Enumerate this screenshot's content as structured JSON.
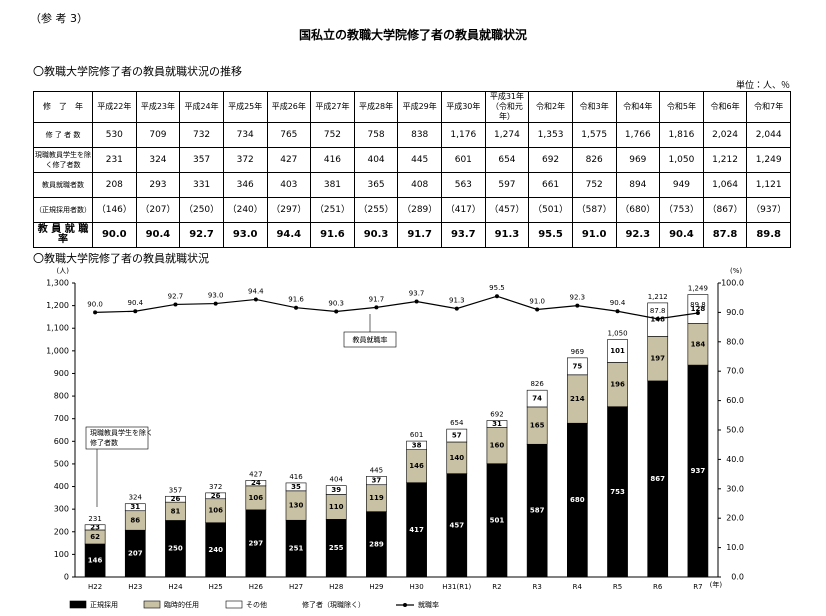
{
  "header": {
    "note": "（参 考 3）",
    "title": "国私立の教職大学院修了者の教員就職状況"
  },
  "table_section": {
    "heading": "〇教職大学院修了者の教員就職状況の推移",
    "unit": "単位：人、％",
    "columns": [
      "修　了　年",
      "平成22年",
      "平成23年",
      "平成24年",
      "平成25年",
      "平成26年",
      "平成27年",
      "平成28年",
      "平成29年",
      "平成30年",
      "平成31年（令和元年）",
      "令和2年",
      "令和3年",
      "令和4年",
      "令和5年",
      "令和6年",
      "令和7年"
    ],
    "rows": [
      [
        "修 了 者 数",
        "530",
        "709",
        "732",
        "734",
        "765",
        "752",
        "758",
        "838",
        "1,176",
        "1,274",
        "1,353",
        "1,575",
        "1,766",
        "1,816",
        "2,024",
        "2,044"
      ],
      [
        "現職教員学生を除く修了者数",
        "231",
        "324",
        "357",
        "372",
        "427",
        "416",
        "404",
        "445",
        "601",
        "654",
        "692",
        "826",
        "969",
        "1,050",
        "1,212",
        "1,249"
      ],
      [
        "教員就職者数",
        "208",
        "293",
        "331",
        "346",
        "403",
        "381",
        "365",
        "408",
        "563",
        "597",
        "661",
        "752",
        "894",
        "949",
        "1,064",
        "1,121"
      ],
      [
        "（正規採用者数）",
        "（146）",
        "（207）",
        "（250）",
        "（240）",
        "（297）",
        "（251）",
        "（255）",
        "（289）",
        "（417）",
        "（457）",
        "（501）",
        "（587）",
        "（680）",
        "（753）",
        "（867）",
        "（937）"
      ],
      [
        "教 員 就 職 率",
        "90.0",
        "90.4",
        "92.7",
        "93.0",
        "94.4",
        "91.6",
        "90.3",
        "91.7",
        "93.7",
        "91.3",
        "95.5",
        "91.0",
        "92.3",
        "90.4",
        "87.8",
        "89.8"
      ]
    ]
  },
  "chart_heading": "〇教職大学院修了者の教員就職状況",
  "chart_data": {
    "type": "bar",
    "stacked": true,
    "categories": [
      "H22",
      "H23",
      "H24",
      "H25",
      "H26",
      "H27",
      "H28",
      "H29",
      "H30",
      "H31(R1)",
      "R2",
      "R3",
      "R4",
      "R5",
      "R6",
      "R7"
    ],
    "x_unit": "(年)",
    "y_unit": "(人)",
    "y2_unit": "(%)",
    "series": [
      {
        "name": "正規採用",
        "type": "bar",
        "color": "#000000",
        "values": [
          146,
          207,
          250,
          240,
          297,
          251,
          255,
          289,
          417,
          457,
          501,
          587,
          680,
          753,
          867,
          937
        ]
      },
      {
        "name": "臨時的任用",
        "type": "bar",
        "color": "#c9c1a3",
        "values": [
          62,
          86,
          81,
          106,
          106,
          130,
          110,
          119,
          146,
          140,
          160,
          165,
          214,
          196,
          197,
          184
        ]
      },
      {
        "name": "その他",
        "type": "bar",
        "color": "#ffffff",
        "values": [
          23,
          31,
          26,
          26,
          24,
          35,
          39,
          37,
          38,
          57,
          31,
          74,
          75,
          101,
          148,
          128
        ]
      },
      {
        "name": "修了者（現職除く）",
        "type": "label",
        "values": [
          231,
          324,
          357,
          372,
          427,
          416,
          404,
          445,
          601,
          654,
          692,
          826,
          969,
          1050,
          1212,
          1249
        ],
        "value_labels": [
          "231",
          "324",
          "357",
          "372",
          "427",
          "416",
          "404",
          "445",
          "601",
          "654",
          "692",
          "826",
          "969",
          "1,050",
          "1,212",
          "1,249"
        ]
      },
      {
        "name": "就職率",
        "type": "line",
        "axis": "y2",
        "color": "#000000",
        "values": [
          90.0,
          90.4,
          92.7,
          93.0,
          94.4,
          91.6,
          90.3,
          91.7,
          93.7,
          91.3,
          95.5,
          91.0,
          92.3,
          90.4,
          87.8,
          89.8
        ],
        "value_labels": [
          "90.0",
          "90.4",
          "92.7",
          "93.0",
          "94.4",
          "91.6",
          "90.3",
          "91.7",
          "93.7",
          "91.3",
          "95.5",
          "91.0",
          "92.3",
          "90.4",
          "87.8",
          "89.8"
        ]
      }
    ],
    "ylim": [
      0,
      1300
    ],
    "yticks": [
      0,
      100,
      200,
      300,
      400,
      500,
      600,
      700,
      800,
      900,
      {
        "value": 1000,
        "label": "1,000"
      },
      {
        "value": 1100,
        "label": "1,100"
      },
      {
        "value": 1200,
        "label": "1,200"
      },
      {
        "value": 1300,
        "label": "1,300"
      }
    ],
    "y2lim": [
      0,
      100
    ],
    "y2ticks": [
      {
        "value": 0,
        "label": "0.0"
      },
      {
        "value": 10,
        "label": "10.0"
      },
      {
        "value": 20,
        "label": "20.0"
      },
      {
        "value": 30,
        "label": "30.0"
      },
      {
        "value": 40,
        "label": "40.0"
      },
      {
        "value": 50,
        "label": "50.0"
      },
      {
        "value": 60,
        "label": "60.0"
      },
      {
        "value": 70,
        "label": "70.0"
      },
      {
        "value": 80,
        "label": "80.0"
      },
      {
        "value": 90,
        "label": "90.0"
      },
      {
        "value": 100,
        "label": "100.0"
      }
    ],
    "grid": false,
    "annotations": [
      {
        "lines": [
          "現職教員学生を除く",
          "修了者数"
        ]
      },
      {
        "lines": [
          "教員就職率"
        ]
      }
    ]
  }
}
